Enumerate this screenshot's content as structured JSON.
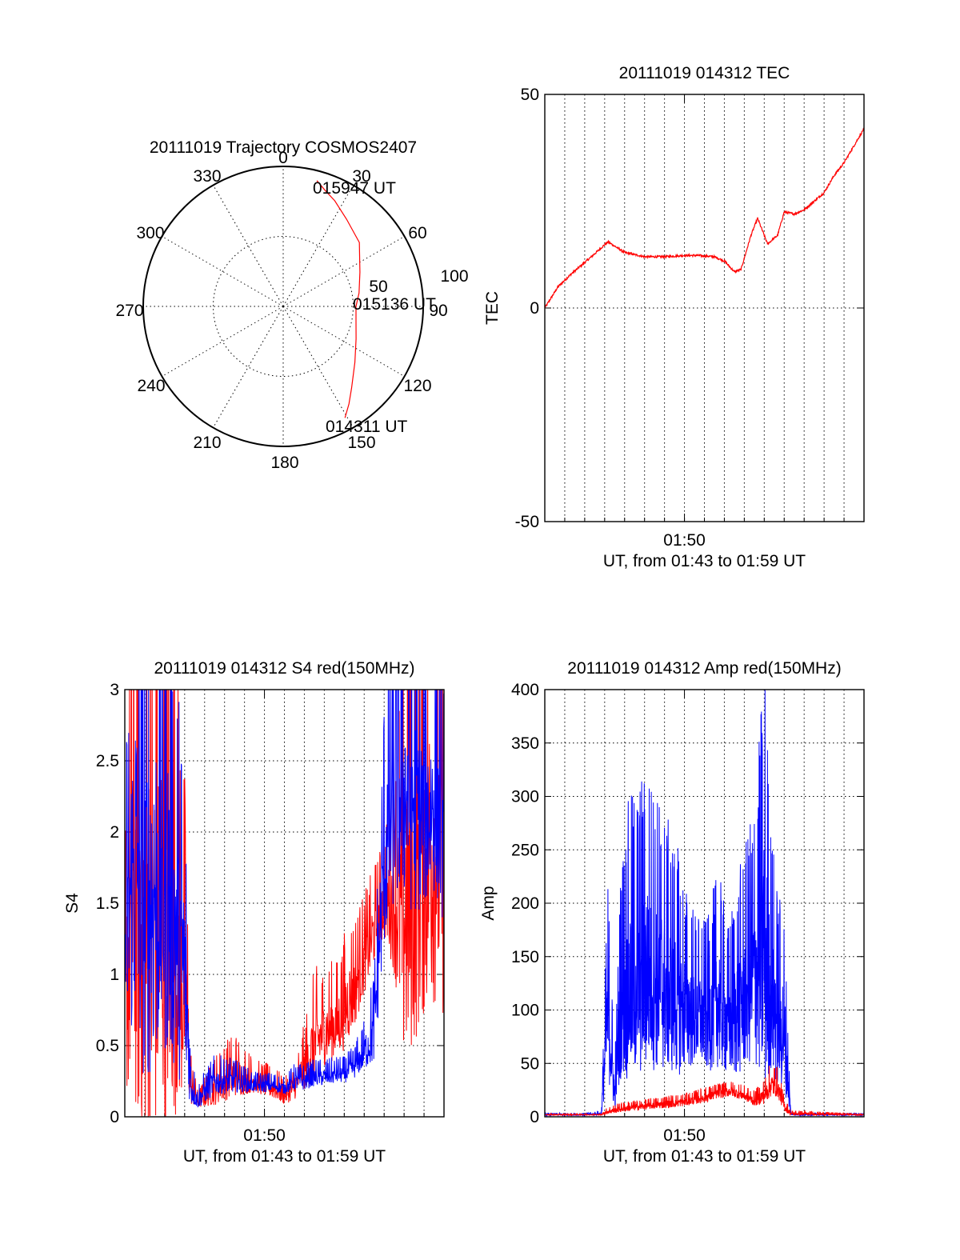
{
  "chart_data": [
    {
      "type": "polar",
      "title": "20111019 Trajectory COSMOS2407",
      "angle_labels": [
        "0",
        "30",
        "60",
        "90",
        "120",
        "150",
        "180",
        "210",
        "240",
        "270",
        "300",
        "330"
      ],
      "radius_labels": [
        "50",
        "100"
      ],
      "rmax": 100,
      "grid": true,
      "series": [
        {
          "color": "#ff0000",
          "azimuth": [
            15,
            20,
            26,
            36,
            50,
            66,
            80,
            90,
            101,
            114,
            128,
            140,
            146,
            151
          ],
          "zenith": [
            93,
            88,
            84,
            77,
            71,
            60,
            55,
            52,
            53,
            57,
            65,
            76,
            84,
            91
          ]
        }
      ],
      "annotations": [
        {
          "text": "015947 UT",
          "azimuth": 18,
          "zenith": 88
        },
        {
          "text": "015136 UT",
          "azimuth": 89,
          "zenith": 52
        },
        {
          "text": "014311 UT",
          "azimuth": 150,
          "zenith": 93
        }
      ]
    },
    {
      "type": "line",
      "title": "20111019 014312 TEC",
      "xlabel": "UT, from 01:43 to 01:59 UT",
      "ylabel": "TEC",
      "xlim": [
        "01:43",
        "01:59"
      ],
      "ylim": [
        -50,
        50
      ],
      "yticks": [
        "50",
        "0",
        "-50"
      ],
      "xticks": [
        "01:50"
      ],
      "grid": true,
      "noise": 0.5,
      "series": [
        {
          "color": "#ff0000",
          "x": [
            "01:43:00",
            "01:43:40",
            "01:44:20",
            "01:45:20",
            "01:46:10",
            "01:47:00",
            "01:48:00",
            "01:49:00",
            "01:50:00",
            "01:50:40",
            "01:51:30",
            "01:52:00",
            "01:52:30",
            "01:52:50",
            "01:53:20",
            "01:53:40",
            "01:54:10",
            "01:54:40",
            "01:55:00",
            "01:55:30",
            "01:56:00",
            "01:56:30",
            "01:57:00",
            "01:57:30",
            "01:58:00",
            "01:58:30",
            "01:59:00"
          ],
          "y": [
            0,
            5,
            8,
            12,
            15.5,
            13,
            12,
            12,
            12.3,
            12.3,
            12,
            11,
            8.5,
            9,
            17,
            21,
            15,
            17,
            22.5,
            22,
            23,
            25,
            27,
            31,
            34,
            38,
            42
          ]
        }
      ]
    },
    {
      "type": "line",
      "title": "20111019 014312 S4 red(150MHz)",
      "xlabel": "UT, from 01:43 to 01:59 UT",
      "ylabel": "S4",
      "xlim": [
        "01:43",
        "01:59"
      ],
      "ylim": [
        0,
        3
      ],
      "yticks": [
        "3",
        "2.5",
        "2",
        "1.5",
        "1",
        "0.5",
        "0"
      ],
      "xticks": [
        "01:50"
      ],
      "grid": true,
      "series": [
        {
          "color": "#ff0000",
          "x": [
            "01:43:00",
            "01:43:30",
            "01:44:00",
            "01:45:00",
            "01:46:00",
            "01:46:20",
            "01:46:40",
            "01:47:30",
            "01:48:30",
            "01:49:30",
            "01:50:30",
            "01:51:00",
            "01:51:30",
            "01:52:00",
            "01:52:30",
            "01:53:00",
            "01:53:40",
            "01:54:00",
            "01:54:30",
            "01:55:00",
            "01:55:30",
            "01:56:00",
            "01:56:30",
            "01:57:00",
            "01:57:30",
            "01:58:00",
            "01:58:30",
            "01:59:00"
          ],
          "y": [
            0.8,
            1.6,
            1.2,
            1.5,
            0.9,
            0.2,
            0.1,
            0.2,
            0.3,
            0.25,
            0.2,
            0.15,
            0.2,
            0.35,
            0.5,
            0.6,
            0.65,
            0.75,
            0.9,
            1.1,
            1.3,
            1.5,
            1.5,
            1.4,
            1.6,
            1.8,
            1.9,
            1.8
          ],
          "noise": [
            0.8,
            2.0,
            2.0,
            2.0,
            1.0,
            0.15,
            0.05,
            0.15,
            0.2,
            0.1,
            0.1,
            0.08,
            0.1,
            0.2,
            0.35,
            0.3,
            0.3,
            0.35,
            0.35,
            0.3,
            0.3,
            0.3,
            0.6,
            1.4,
            1.4,
            1.4,
            1.4,
            1.4
          ]
        },
        {
          "color": "#0000ff",
          "x": [
            "01:43:00",
            "01:43:30",
            "01:44:00",
            "01:45:00",
            "01:46:00",
            "01:46:20",
            "01:46:40",
            "01:47:30",
            "01:48:30",
            "01:49:30",
            "01:50:30",
            "01:51:00",
            "01:51:30",
            "01:52:00",
            "01:52:30",
            "01:53:00",
            "01:53:40",
            "01:54:00",
            "01:54:30",
            "01:55:00",
            "01:55:30",
            "01:56:00",
            "01:56:30",
            "01:57:00",
            "01:57:30",
            "01:58:00",
            "01:58:30",
            "01:59:00"
          ],
          "y": [
            1.2,
            1.8,
            1.5,
            1.7,
            1.0,
            0.2,
            0.12,
            0.25,
            0.25,
            0.22,
            0.22,
            0.2,
            0.25,
            0.25,
            0.28,
            0.28,
            0.3,
            0.3,
            0.35,
            0.45,
            0.6,
            1.8,
            2.2,
            2.3,
            2.2,
            2.1,
            2.2,
            2.0
          ],
          "noise": [
            0.8,
            1.6,
            1.6,
            1.6,
            1.0,
            0.15,
            0.08,
            0.12,
            0.1,
            0.06,
            0.06,
            0.05,
            0.08,
            0.08,
            0.08,
            0.08,
            0.08,
            0.08,
            0.1,
            0.15,
            0.3,
            0.8,
            0.9,
            1.0,
            1.0,
            0.8,
            0.8,
            0.8
          ]
        }
      ]
    },
    {
      "type": "line",
      "title": "20111019 014312 Amp red(150MHz)",
      "xlabel": "UT, from 01:43 to 01:59 UT",
      "ylabel": "Amp",
      "xlim": [
        "01:43",
        "01:59"
      ],
      "ylim": [
        0,
        400
      ],
      "yticks": [
        "400",
        "350",
        "300",
        "250",
        "200",
        "150",
        "100",
        "50",
        "0"
      ],
      "xticks": [
        "01:50"
      ],
      "grid": true,
      "series": [
        {
          "color": "#0000ff",
          "x": [
            "01:43:00",
            "01:45:00",
            "01:45:50",
            "01:46:10",
            "01:46:30",
            "01:46:50",
            "01:47:10",
            "01:47:40",
            "01:48:10",
            "01:48:40",
            "01:49:10",
            "01:49:40",
            "01:50:10",
            "01:50:40",
            "01:51:10",
            "01:51:40",
            "01:52:10",
            "01:52:40",
            "01:53:10",
            "01:53:40",
            "01:54:00",
            "01:54:20",
            "01:54:40",
            "01:55:00",
            "01:55:20",
            "01:55:40",
            "01:56:00",
            "01:59:00"
          ],
          "y": [
            2,
            2,
            3,
            100,
            20,
            110,
            120,
            130,
            140,
            130,
            120,
            110,
            100,
            95,
            90,
            110,
            85,
            100,
            120,
            140,
            160,
            120,
            90,
            80,
            3,
            2,
            2,
            2
          ],
          "noise": [
            1,
            1,
            2,
            80,
            20,
            90,
            110,
            120,
            120,
            110,
            100,
            90,
            70,
            60,
            60,
            80,
            60,
            80,
            90,
            120,
            180,
            100,
            80,
            70,
            2,
            1,
            1,
            1
          ]
        },
        {
          "color": "#ff0000",
          "x": [
            "01:43:00",
            "01:45:50",
            "01:46:10",
            "01:47:00",
            "01:48:00",
            "01:49:00",
            "01:50:00",
            "01:51:00",
            "01:51:40",
            "01:52:20",
            "01:53:00",
            "01:53:30",
            "01:54:00",
            "01:54:20",
            "01:54:40",
            "01:55:00",
            "01:55:20",
            "01:59:00"
          ],
          "y": [
            2,
            2,
            5,
            8,
            10,
            12,
            14,
            18,
            22,
            24,
            20,
            15,
            20,
            30,
            28,
            10,
            3,
            2
          ],
          "noise": [
            0.5,
            0.5,
            3,
            4,
            4,
            5,
            5,
            6,
            6,
            6,
            6,
            6,
            10,
            14,
            12,
            6,
            2,
            0.5
          ]
        }
      ]
    }
  ]
}
